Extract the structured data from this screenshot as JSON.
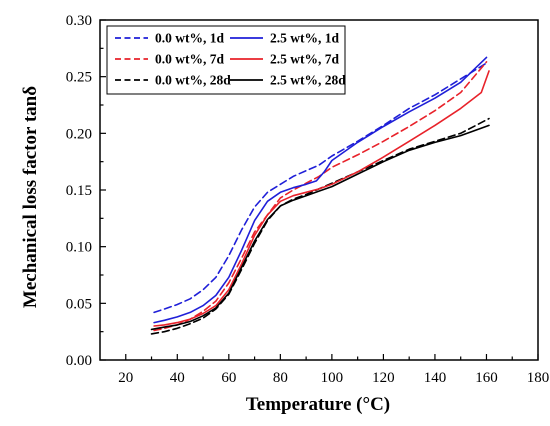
{
  "chart_data": {
    "type": "line",
    "xlabel": "Temperature (°C)",
    "ylabel": "Mechanical loss factor tanδ",
    "xlim": [
      10,
      180
    ],
    "ylim": [
      0.0,
      0.3
    ],
    "x_ticks": [
      20,
      30,
      40,
      50,
      60,
      70,
      80,
      90,
      100,
      110,
      120,
      130,
      140,
      150,
      160,
      170,
      180
    ],
    "x_tick_labels": [
      "20",
      "40",
      "60",
      "80",
      "100",
      "120",
      "140",
      "160",
      "180"
    ],
    "y_ticks": [
      0.0,
      0.05,
      0.1,
      0.15,
      0.2,
      0.25,
      0.3
    ],
    "y_tick_labels": [
      "0.00",
      "0.05",
      "0.10",
      "0.15",
      "0.20",
      "0.25",
      "0.30"
    ],
    "grid": false,
    "legend_position": "top-left",
    "series": [
      {
        "name": "0.0 wt%, 1d",
        "color": "#1f1fd8",
        "dash": "dashed",
        "x": [
          31,
          35,
          40,
          45,
          50,
          55,
          60,
          65,
          70,
          75,
          80,
          85,
          90,
          95,
          100,
          110,
          120,
          130,
          140,
          150,
          160
        ],
        "y": [
          0.042,
          0.045,
          0.049,
          0.054,
          0.062,
          0.073,
          0.092,
          0.115,
          0.135,
          0.148,
          0.155,
          0.162,
          0.167,
          0.172,
          0.18,
          0.193,
          0.207,
          0.222,
          0.234,
          0.248,
          0.262
        ]
      },
      {
        "name": "0.0 wt%, 7d",
        "color": "#e8222a",
        "dash": "dashed",
        "x": [
          31,
          35,
          40,
          45,
          50,
          55,
          60,
          65,
          70,
          75,
          80,
          85,
          90,
          95,
          100,
          110,
          120,
          130,
          140,
          150,
          160
        ],
        "y": [
          0.026,
          0.028,
          0.031,
          0.036,
          0.043,
          0.052,
          0.068,
          0.09,
          0.113,
          0.128,
          0.143,
          0.15,
          0.156,
          0.162,
          0.17,
          0.181,
          0.193,
          0.206,
          0.22,
          0.236,
          0.263
        ]
      },
      {
        "name": "0.0 wt%, 28d",
        "color": "#000000",
        "dash": "dashed",
        "x": [
          30,
          35,
          40,
          45,
          50,
          55,
          60,
          65,
          70,
          75,
          80,
          85,
          90,
          95,
          100,
          110,
          120,
          130,
          140,
          150,
          161
        ],
        "y": [
          0.023,
          0.025,
          0.028,
          0.032,
          0.037,
          0.045,
          0.058,
          0.08,
          0.103,
          0.123,
          0.136,
          0.142,
          0.146,
          0.151,
          0.156,
          0.166,
          0.176,
          0.186,
          0.193,
          0.2,
          0.213
        ]
      },
      {
        "name": "2.5 wt%, 1d",
        "color": "#1f1fd8",
        "dash": "solid",
        "x": [
          31,
          35,
          40,
          45,
          50,
          55,
          60,
          65,
          70,
          75,
          80,
          85,
          90,
          94,
          97,
          100,
          110,
          120,
          130,
          140,
          150,
          160
        ],
        "y": [
          0.033,
          0.035,
          0.038,
          0.042,
          0.048,
          0.057,
          0.073,
          0.097,
          0.123,
          0.14,
          0.148,
          0.152,
          0.155,
          0.158,
          0.166,
          0.176,
          0.192,
          0.206,
          0.219,
          0.231,
          0.245,
          0.267
        ]
      },
      {
        "name": "2.5 wt%, 7d",
        "color": "#e8222a",
        "dash": "solid",
        "x": [
          31,
          35,
          40,
          45,
          50,
          55,
          60,
          65,
          70,
          75,
          80,
          85,
          90,
          95,
          100,
          110,
          120,
          130,
          140,
          150,
          158,
          161
        ],
        "y": [
          0.03,
          0.031,
          0.033,
          0.036,
          0.041,
          0.048,
          0.062,
          0.085,
          0.11,
          0.128,
          0.14,
          0.145,
          0.148,
          0.151,
          0.155,
          0.166,
          0.179,
          0.193,
          0.207,
          0.222,
          0.236,
          0.255
        ]
      },
      {
        "name": "2.5 wt%, 28d",
        "color": "#000000",
        "dash": "solid",
        "x": [
          30,
          35,
          40,
          45,
          50,
          55,
          60,
          65,
          70,
          75,
          80,
          85,
          90,
          95,
          100,
          110,
          120,
          130,
          140,
          150,
          161
        ],
        "y": [
          0.027,
          0.029,
          0.031,
          0.034,
          0.039,
          0.046,
          0.059,
          0.082,
          0.105,
          0.124,
          0.136,
          0.141,
          0.145,
          0.149,
          0.153,
          0.164,
          0.175,
          0.185,
          0.192,
          0.198,
          0.207
        ]
      }
    ]
  }
}
